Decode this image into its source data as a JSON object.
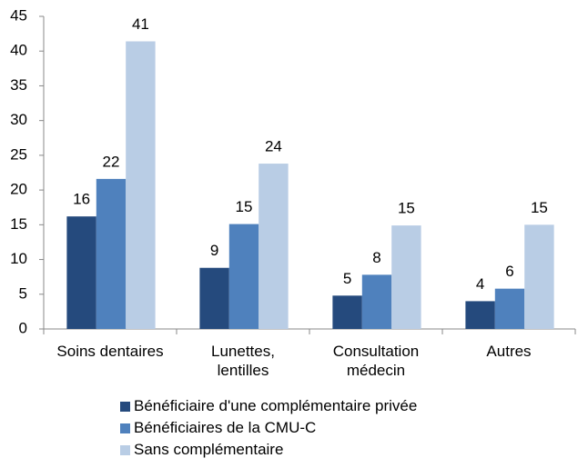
{
  "chart_data": {
    "type": "bar",
    "categories": [
      "Soins dentaires",
      "Lunettes,\nlentilles",
      "Consultation\nmédecin",
      "Autres"
    ],
    "series": [
      {
        "name": "Bénéficiaire d'une complémentaire privée",
        "color": "#254a7d",
        "values": [
          16.2,
          8.8,
          4.8,
          4.0
        ],
        "value_labels": [
          "16",
          "9",
          "5",
          "4"
        ]
      },
      {
        "name": "Bénéficiaires de la CMU-C",
        "color": "#4f81bd",
        "values": [
          21.6,
          15.1,
          7.8,
          5.8
        ],
        "value_labels": [
          "22",
          "15",
          "8",
          "6"
        ]
      },
      {
        "name": "Sans complémentaire",
        "color": "#b9cde5",
        "values": [
          41.4,
          23.8,
          14.9,
          15.0
        ],
        "value_labels": [
          "41",
          "24",
          "15",
          "15"
        ]
      }
    ],
    "ylim": [
      0,
      45
    ],
    "yticks": [
      0,
      5,
      10,
      15,
      20,
      25,
      30,
      35,
      40,
      45
    ],
    "grid": false,
    "legend": "bottom"
  }
}
